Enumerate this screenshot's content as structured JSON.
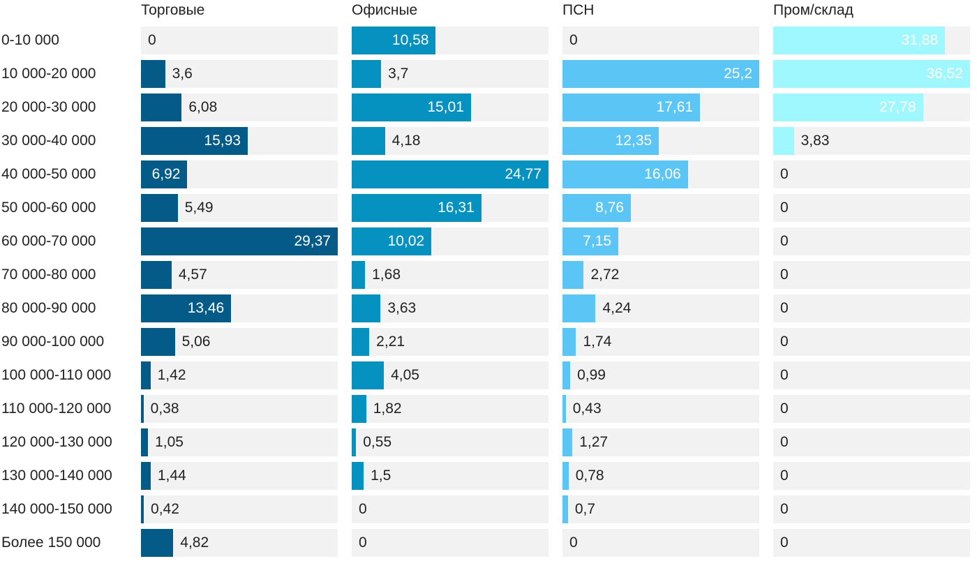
{
  "chart_data": {
    "type": "bar",
    "orientation": "horizontal",
    "layout": "small-multiples",
    "categories": [
      "0-10 000",
      "10 000-20 000",
      "20 000-30 000",
      "30 000-40 000",
      "40 000-50 000",
      "50 000-60 000",
      "60 000-70 000",
      "70 000-80 000",
      "80 000-90 000",
      "90 000-100 000",
      "100 000-110 000",
      "110 000-120 000",
      "120 000-130 000",
      "130 000-140 000",
      "140 000-150 000",
      "Более 150 000"
    ],
    "series": [
      {
        "name": "Торговые",
        "color": "#045b87",
        "values": [
          0,
          3.6,
          6.08,
          15.93,
          6.92,
          5.49,
          29.37,
          4.57,
          13.46,
          5.06,
          1.42,
          0.38,
          1.05,
          1.44,
          0.42,
          4.82
        ],
        "labels": [
          "0",
          "3,6",
          "6,08",
          "15,93",
          "6,92",
          "5,49",
          "29,37",
          "4,57",
          "13,46",
          "5,06",
          "1,42",
          "0,38",
          "1,05",
          "1,44",
          "0,42",
          "4,82"
        ]
      },
      {
        "name": "Офисные",
        "color": "#0592c0",
        "values": [
          10.58,
          3.7,
          15.01,
          4.18,
          24.77,
          16.31,
          10.02,
          1.68,
          3.63,
          2.21,
          4.05,
          1.82,
          0.55,
          1.5,
          0,
          0
        ],
        "labels": [
          "10,58",
          "3,7",
          "15,01",
          "4,18",
          "24,77",
          "16,31",
          "10,02",
          "1,68",
          "3,63",
          "2,21",
          "4,05",
          "1,82",
          "0,55",
          "1,5",
          "0",
          "0"
        ]
      },
      {
        "name": "ПСН",
        "color": "#5bc6f5",
        "values": [
          0,
          25.2,
          17.61,
          12.35,
          16.06,
          8.76,
          7.15,
          2.72,
          4.24,
          1.74,
          0.99,
          0.43,
          1.27,
          0.78,
          0.7,
          0
        ],
        "labels": [
          "0",
          "25,2",
          "17,61",
          "12,35",
          "16,06",
          "8,76",
          "7,15",
          "2,72",
          "4,24",
          "1,74",
          "0,99",
          "0,43",
          "1,27",
          "0,78",
          "0,7",
          "0"
        ]
      },
      {
        "name": "Пром/склад",
        "color": "#9ff8ff",
        "values": [
          31.88,
          36.52,
          27.78,
          3.83,
          0,
          0,
          0,
          0,
          0,
          0,
          0,
          0,
          0,
          0,
          0,
          0
        ],
        "labels": [
          "31,88",
          "36,52",
          "27,78",
          "3,83",
          "0",
          "0",
          "0",
          "0",
          "0",
          "0",
          "0",
          "0",
          "0",
          "0",
          "0",
          "0"
        ]
      }
    ],
    "label_colors": {
      "inside": "#ffffff",
      "outside": "#222222"
    },
    "track_color": "#f2f2f2",
    "grid": false,
    "legend": "none"
  }
}
